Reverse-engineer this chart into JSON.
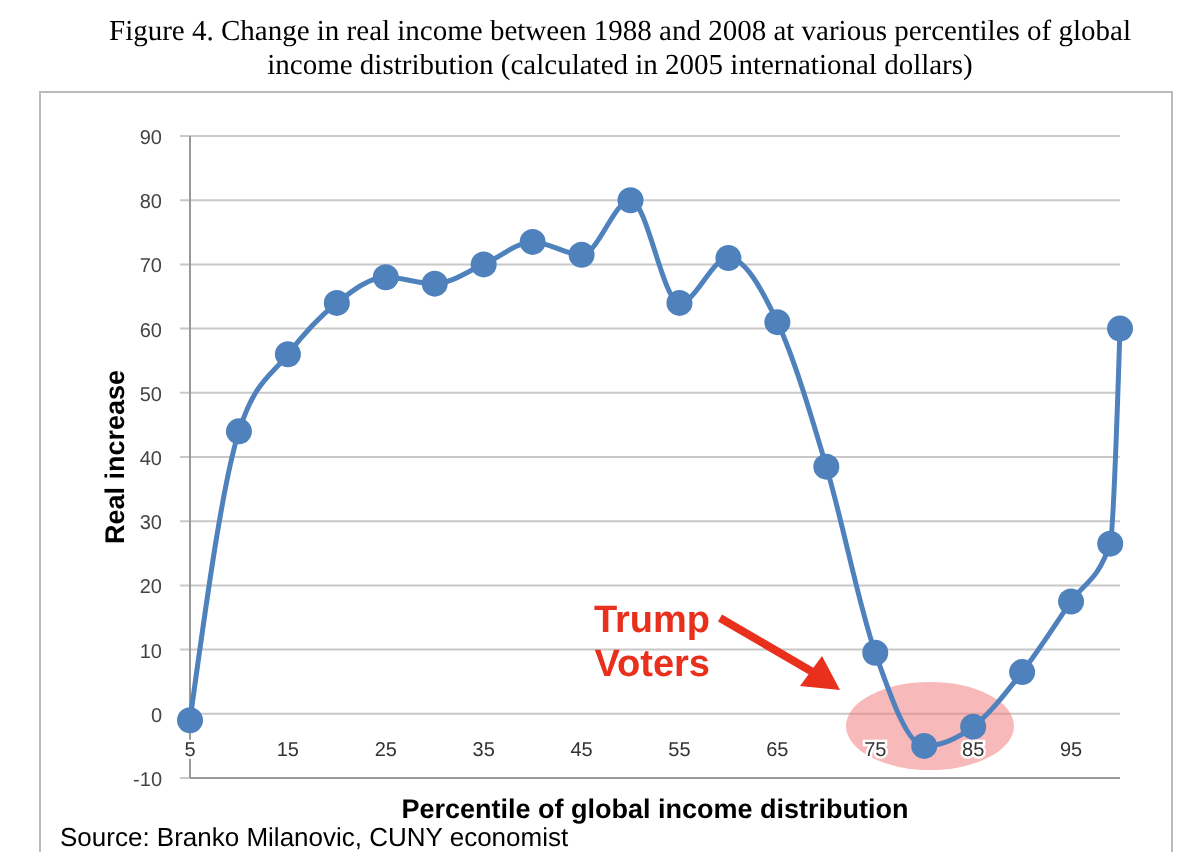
{
  "chart_data": {
    "type": "line",
    "title": "Figure 4. Change in real income between 1988 and 2008 at various percentiles of global income distribution (calculated in 2005 international dollars)",
    "xlabel": "Percentile of global income distribution",
    "ylabel": "Real increase",
    "x": [
      5,
      10,
      15,
      20,
      25,
      30,
      35,
      40,
      45,
      50,
      55,
      60,
      65,
      70,
      75,
      80,
      85,
      90,
      95,
      99,
      100
    ],
    "series": [
      {
        "color": "#4f81bd",
        "values": [
          -1,
          44,
          56,
          64,
          68,
          67,
          70,
          73.5,
          71.5,
          80,
          64,
          71,
          61,
          38.5,
          9.5,
          -5,
          -2,
          6.5,
          17.5,
          26.5,
          60
        ]
      }
    ],
    "xlim": [
      5,
      100
    ],
    "xticks": [
      5,
      15,
      25,
      35,
      45,
      55,
      65,
      75,
      85,
      95
    ],
    "ylim": [
      -10,
      90
    ],
    "yticks": [
      -10,
      0,
      10,
      20,
      30,
      40,
      50,
      60,
      70,
      80,
      90
    ],
    "grid": "y",
    "marker": "circle",
    "line_style": "solid",
    "annotations": [
      "Trump\nVoters",
      "Source: Branko Milanovic, CUNY economist"
    ]
  }
}
